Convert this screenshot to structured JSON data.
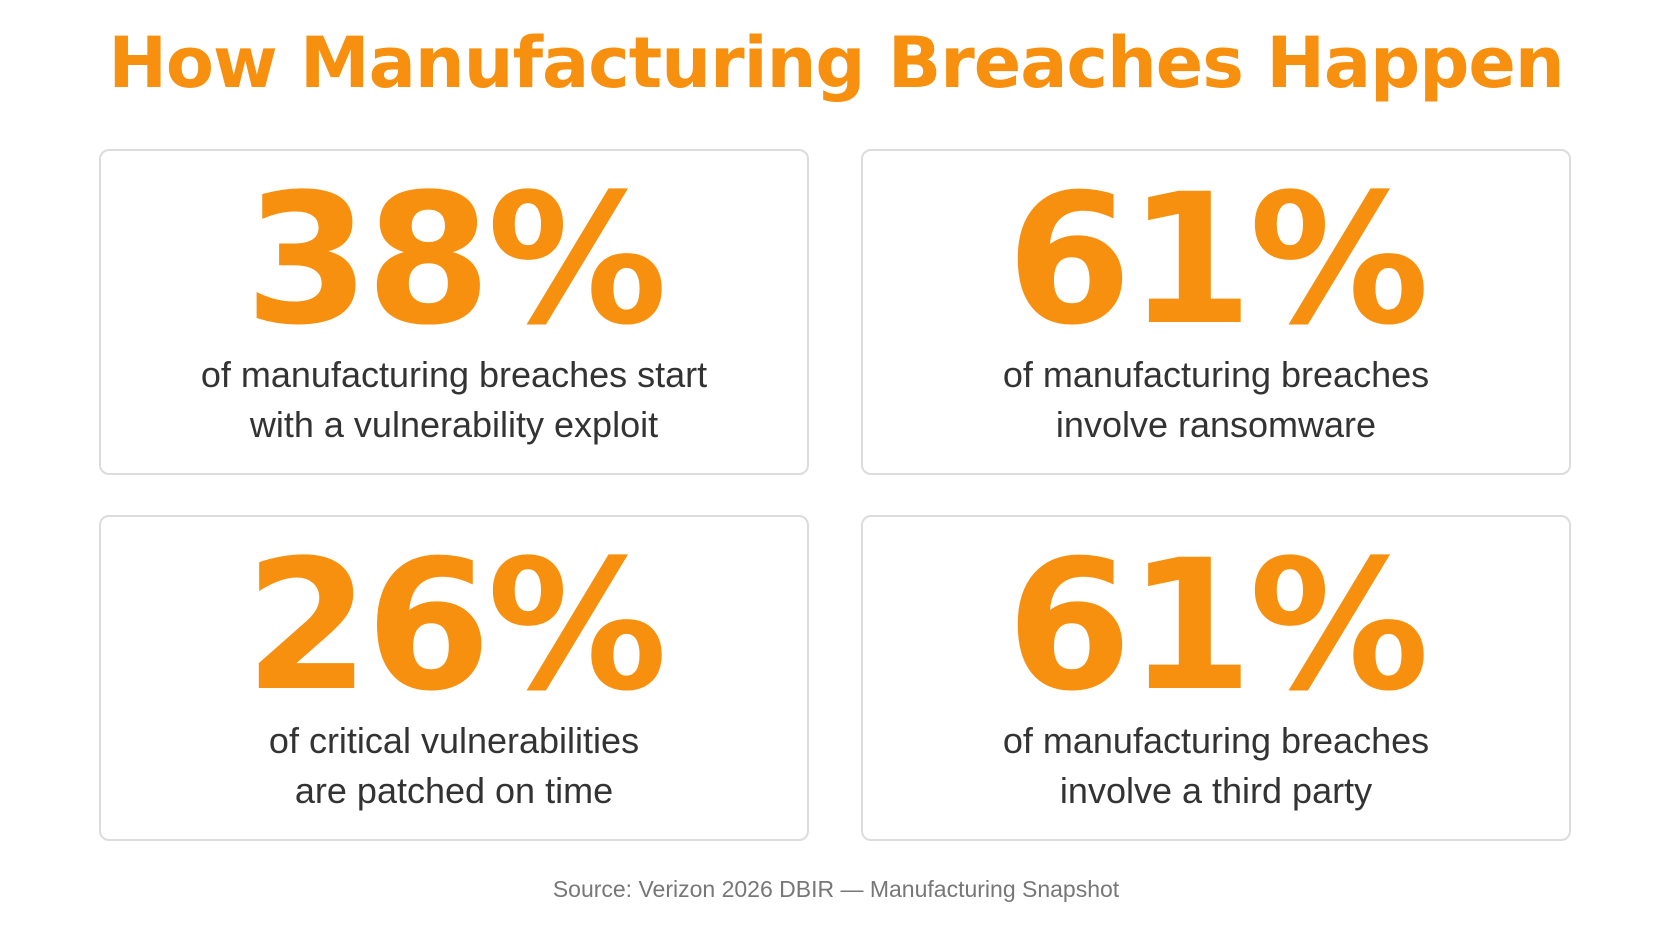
{
  "title": "How Manufacturing Breaches Happen",
  "cards": [
    {
      "stat": "38%",
      "lines": [
        "of manufacturing breaches start",
        "with a vulnerability exploit"
      ]
    },
    {
      "stat": "61%",
      "lines": [
        "of manufacturing breaches",
        "involve ransomware"
      ]
    },
    {
      "stat": "26%",
      "lines": [
        "of critical vulnerabilities",
        "are patched on time"
      ]
    },
    {
      "stat": "61%",
      "lines": [
        "of manufacturing breaches",
        "involve a third party"
      ]
    }
  ],
  "source": "Source: Verizon 2026 DBIR — Manufacturing Snapshot"
}
